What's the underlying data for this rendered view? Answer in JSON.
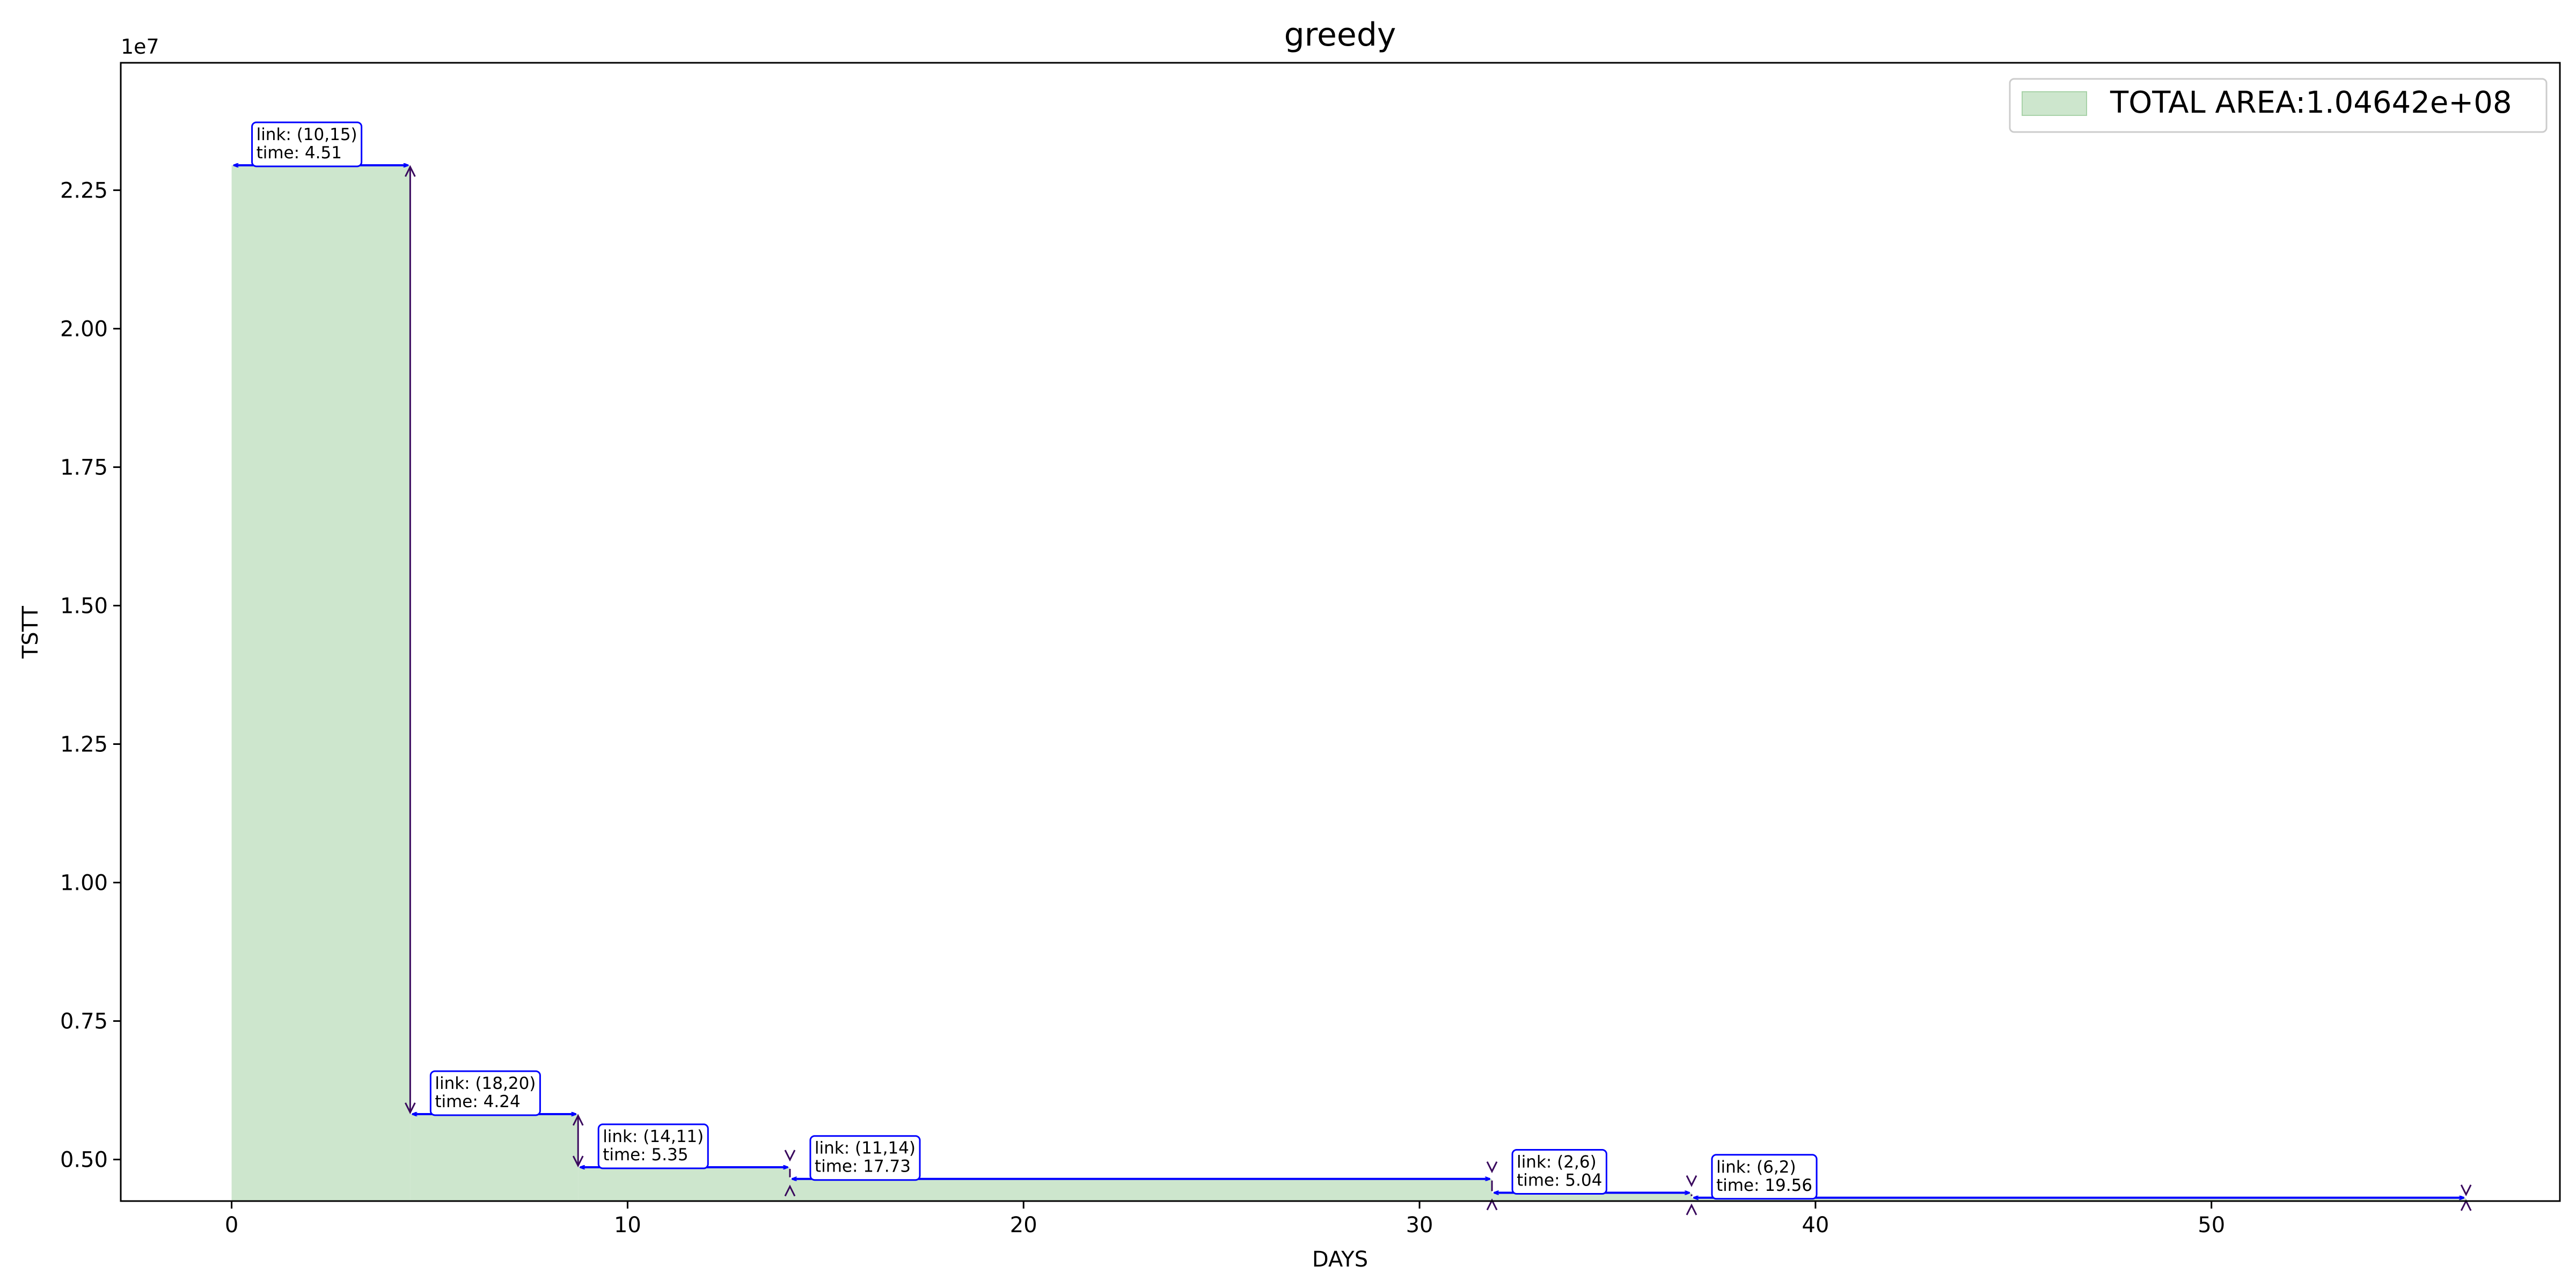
{
  "chart_data": {
    "type": "area",
    "title": "greedy",
    "xlabel": "DAYS",
    "ylabel": "TSTT",
    "y_offset_label": "1e7",
    "xlim": [
      -2.8,
      58.8
    ],
    "ylim": [
      4250000,
      24800000
    ],
    "x_ticks": [
      0,
      10,
      20,
      30,
      40,
      50
    ],
    "y_ticks": [
      5000000,
      7500000,
      10000000,
      12500000,
      15000000,
      17500000,
      20000000,
      22500000
    ],
    "x_tick_labels": [
      "0",
      "10",
      "20",
      "30",
      "40",
      "50"
    ],
    "y_tick_labels": [
      "0.50",
      "0.75",
      "1.00",
      "1.25",
      "1.50",
      "1.75",
      "2.00",
      "2.25"
    ],
    "fill_color": "#cde6cd",
    "arrow_color": "#0000ff",
    "drop_arrow_color": "#3a0a5e",
    "legend_position": "upper right",
    "legend_label": "TOTAL AREA:1.04642e+08",
    "steps": [
      {
        "start": 0,
        "end": 4.51,
        "value": 22950000,
        "link": "link: (10,15)",
        "time": "time: 4.51"
      },
      {
        "start": 4.51,
        "end": 8.75,
        "value": 5820000,
        "link": "link: (18,20)",
        "time": "time: 4.24"
      },
      {
        "start": 8.75,
        "end": 14.1,
        "value": 4860000,
        "link": "link: (14,11)",
        "time": "time: 5.35"
      },
      {
        "start": 14.1,
        "end": 31.83,
        "value": 4650000,
        "link": "link: (11,14)",
        "time": "time: 17.73"
      },
      {
        "start": 31.83,
        "end": 36.87,
        "value": 4400000,
        "link": "link: (2,6)",
        "time": "time: 5.04"
      },
      {
        "start": 36.87,
        "end": 56.43,
        "value": 4310000,
        "link": "link: (6,2)",
        "time": "time: 19.56"
      }
    ]
  }
}
